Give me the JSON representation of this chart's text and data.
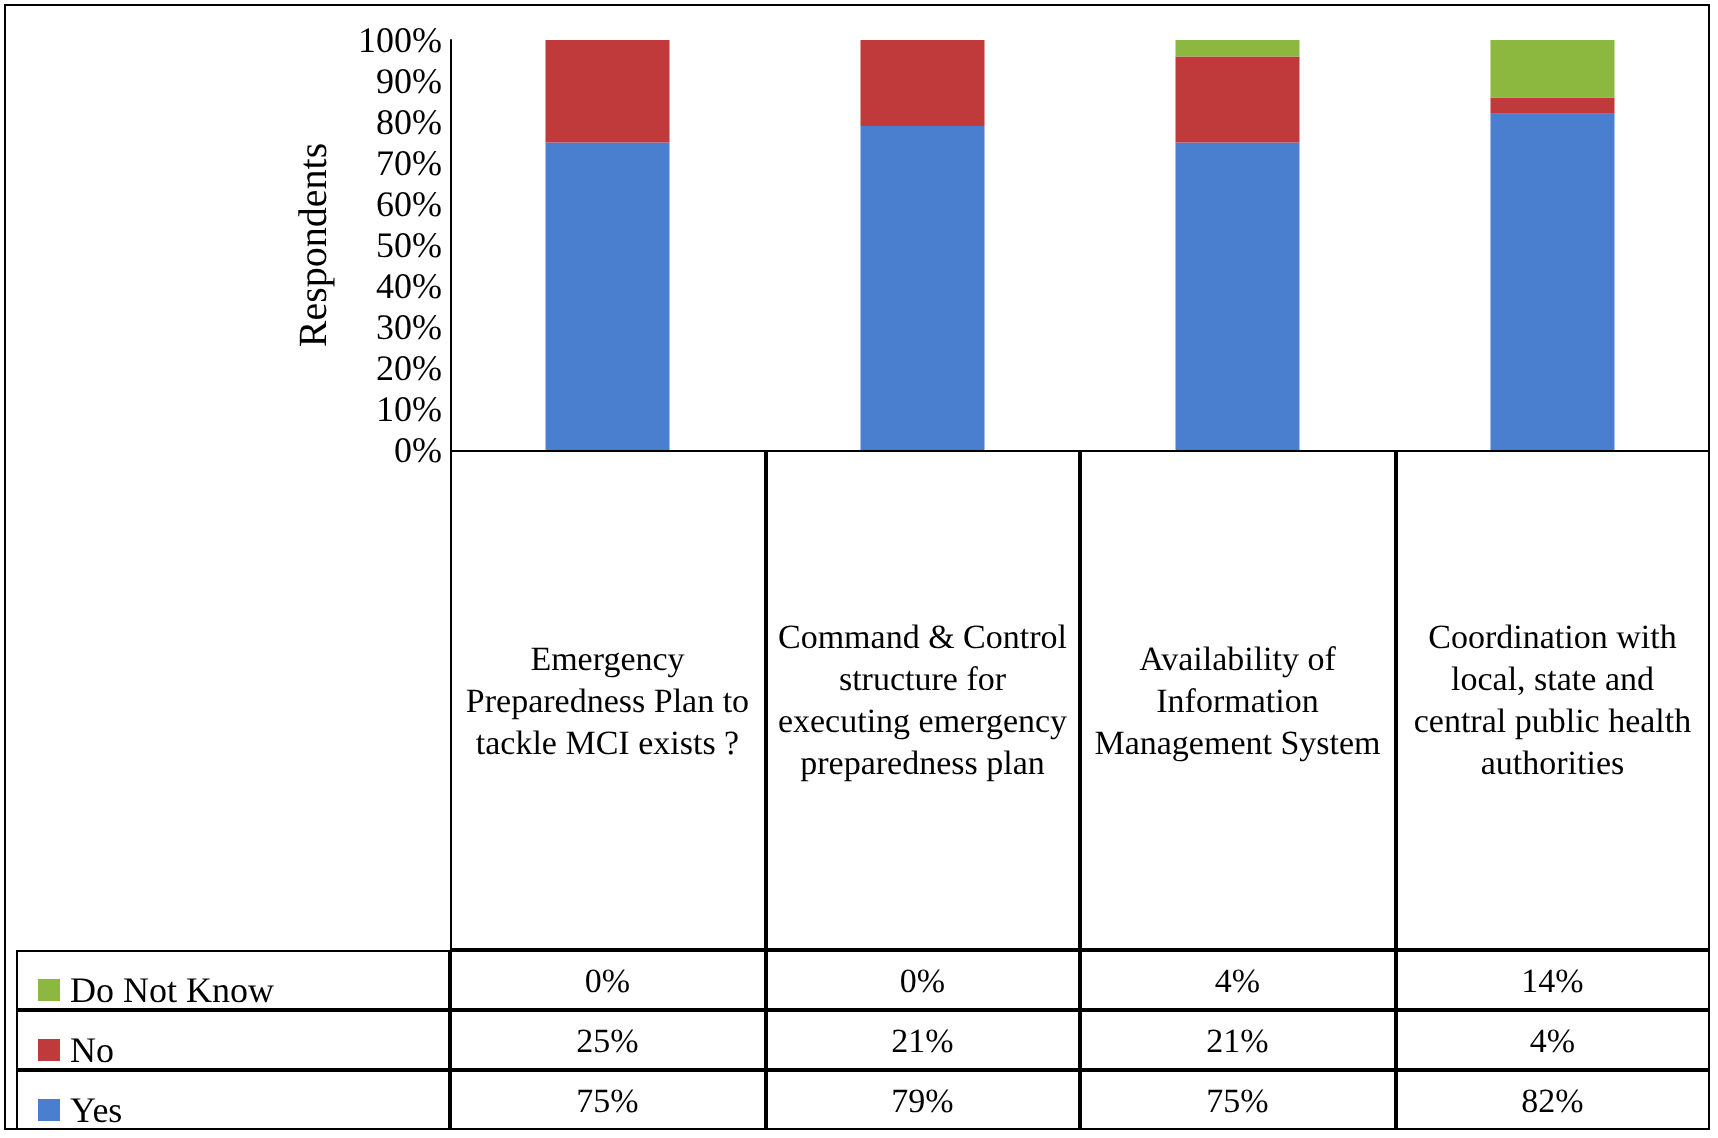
{
  "chart_data": {
    "type": "bar",
    "stacked": true,
    "ylabel": "Respondents",
    "categories": [
      "Emergency Preparedness Plan to tackle MCI exists ?",
      "Command & Control structure for executing emergency preparedness plan",
      "Availability of Information Management System",
      "Coordination with local, state and central public health authorities"
    ],
    "series": [
      {
        "name": "Yes",
        "color": "#4a7fd0",
        "values": [
          75,
          79,
          75,
          82
        ],
        "value_labels": [
          "75%",
          "79%",
          "75%",
          "82%"
        ]
      },
      {
        "name": "No",
        "color": "#c0393b",
        "values": [
          25,
          21,
          21,
          4
        ],
        "value_labels": [
          "25%",
          "21%",
          "21%",
          "4%"
        ]
      },
      {
        "name": "Do Not Know",
        "color": "#8cb840",
        "values": [
          0,
          0,
          4,
          14
        ],
        "value_labels": [
          "0%",
          "0%",
          "4%",
          "14%"
        ]
      }
    ],
    "ylim": [
      0,
      100
    ],
    "yticks": [
      {
        "value": 0,
        "label": "0%"
      },
      {
        "value": 10,
        "label": "10%"
      },
      {
        "value": 20,
        "label": "20%"
      },
      {
        "value": 30,
        "label": "30%"
      },
      {
        "value": 40,
        "label": "40%"
      },
      {
        "value": 50,
        "label": "50%"
      },
      {
        "value": 60,
        "label": "60%"
      },
      {
        "value": 70,
        "label": "70%"
      },
      {
        "value": 80,
        "label": "80%"
      },
      {
        "value": 90,
        "label": "90%"
      },
      {
        "value": 100,
        "label": "100%"
      }
    ],
    "grid": false,
    "legend": "bottom left"
  }
}
